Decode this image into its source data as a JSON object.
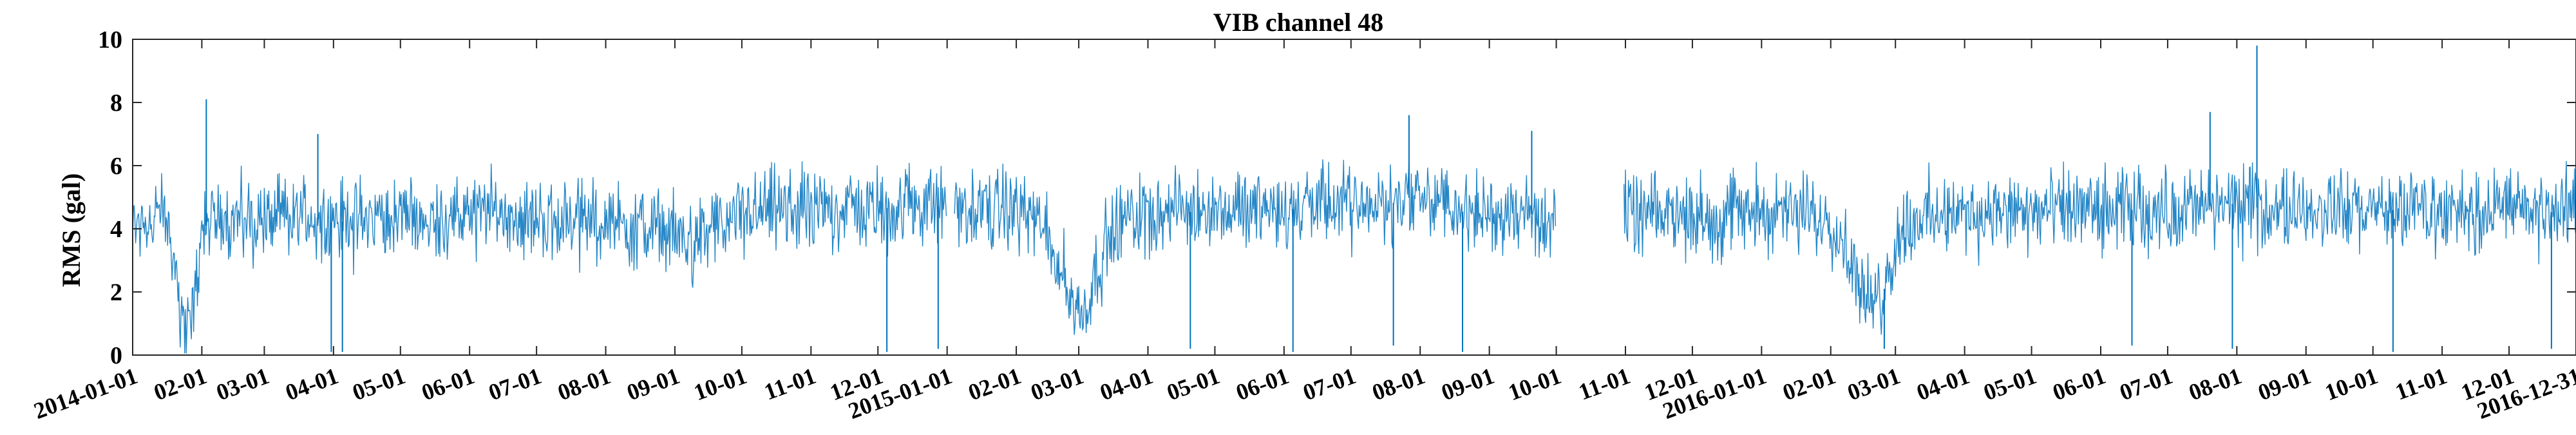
{
  "chart_data": {
    "type": "line",
    "title": "VIB channel 48",
    "xlabel": "",
    "ylabel": "RMS (gal)",
    "xlim": [
      "2014-01-01",
      "2016-12-31"
    ],
    "ylim": [
      0,
      10
    ],
    "yticks": [
      0,
      2,
      4,
      6,
      8,
      10
    ],
    "grid": false,
    "line_color": "#0072bd",
    "xtick_labels": [
      {
        "date": "2014-01-01",
        "label": "2014-01-01"
      },
      {
        "date": "2014-02-01",
        "label": "02-01"
      },
      {
        "date": "2014-03-01",
        "label": "03-01"
      },
      {
        "date": "2014-04-01",
        "label": "04-01"
      },
      {
        "date": "2014-05-01",
        "label": "05-01"
      },
      {
        "date": "2014-06-01",
        "label": "06-01"
      },
      {
        "date": "2014-07-01",
        "label": "07-01"
      },
      {
        "date": "2014-08-01",
        "label": "08-01"
      },
      {
        "date": "2014-09-01",
        "label": "09-01"
      },
      {
        "date": "2014-10-01",
        "label": "10-01"
      },
      {
        "date": "2014-11-01",
        "label": "11-01"
      },
      {
        "date": "2014-12-01",
        "label": "12-01"
      },
      {
        "date": "2015-01-01",
        "label": "2015-01-01"
      },
      {
        "date": "2015-02-01",
        "label": "02-01"
      },
      {
        "date": "2015-03-01",
        "label": "03-01"
      },
      {
        "date": "2015-04-01",
        "label": "04-01"
      },
      {
        "date": "2015-05-01",
        "label": "05-01"
      },
      {
        "date": "2015-06-01",
        "label": "06-01"
      },
      {
        "date": "2015-07-01",
        "label": "07-01"
      },
      {
        "date": "2015-08-01",
        "label": "08-01"
      },
      {
        "date": "2015-09-01",
        "label": "09-01"
      },
      {
        "date": "2015-10-01",
        "label": "10-01"
      },
      {
        "date": "2015-11-01",
        "label": "11-01"
      },
      {
        "date": "2015-12-01",
        "label": "12-01"
      },
      {
        "date": "2016-01-01",
        "label": "2016-01-01"
      },
      {
        "date": "2016-02-01",
        "label": "02-01"
      },
      {
        "date": "2016-03-01",
        "label": "03-01"
      },
      {
        "date": "2016-04-01",
        "label": "04-01"
      },
      {
        "date": "2016-05-01",
        "label": "05-01"
      },
      {
        "date": "2016-06-01",
        "label": "06-01"
      },
      {
        "date": "2016-07-01",
        "label": "07-01"
      },
      {
        "date": "2016-08-01",
        "label": "08-01"
      },
      {
        "date": "2016-09-01",
        "label": "09-01"
      },
      {
        "date": "2016-10-01",
        "label": "10-01"
      },
      {
        "date": "2016-11-01",
        "label": "11-01"
      },
      {
        "date": "2016-12-01",
        "label": "12-01"
      },
      {
        "date": "2016-12-31",
        "label": "2016-12-31"
      }
    ],
    "series": [
      {
        "x": [
          "2014-01-01",
          "2014-01-05",
          "2014-01-10",
          "2014-01-13",
          "2014-01-15",
          "2014-01-18",
          "2014-01-20",
          "2014-01-23",
          "2014-01-26",
          "2014-01-29",
          "2014-02-01",
          "2014-02-04",
          "2014-02-07",
          "2014-02-10",
          "2014-02-15",
          "2014-02-20",
          "2014-02-25",
          "2014-03-05",
          "2014-03-15",
          "2014-03-25",
          "2014-04-01",
          "2014-04-15",
          "2014-05-01",
          "2014-05-15",
          "2014-06-01",
          "2014-06-15",
          "2014-07-01",
          "2014-07-15",
          "2014-08-01",
          "2014-08-15",
          "2014-09-01",
          "2014-09-15",
          "2014-09-25",
          "2014-10-05",
          "2014-10-20",
          "2014-11-01",
          "2014-11-15",
          "2014-12-01",
          "2014-12-15",
          "2014-12-31",
          "2015-01-10",
          "2015-01-25",
          "2015-02-05",
          "2015-02-12",
          "2015-02-18",
          "2015-02-22",
          "2015-02-26",
          "2015-03-02",
          "2015-03-06",
          "2015-03-12",
          "2015-03-20",
          "2015-04-01",
          "2015-04-15",
          "2015-05-01",
          "2015-05-15",
          "2015-06-01",
          "2015-06-15",
          "2015-07-01",
          "2015-07-15",
          "2015-08-01",
          "2015-08-15",
          "2015-09-01",
          "2015-09-15",
          "2015-09-28",
          "2015-11-05",
          "2015-11-20",
          "2015-12-01",
          "2015-12-15",
          "2016-01-01",
          "2016-01-15",
          "2016-01-25",
          "2016-02-01",
          "2016-02-05",
          "2016-02-10",
          "2016-02-15",
          "2016-02-20",
          "2016-02-25",
          "2016-03-01",
          "2016-03-05",
          "2016-03-15",
          "2016-04-01",
          "2016-04-15",
          "2016-05-01",
          "2016-05-15",
          "2016-06-01",
          "2016-06-15",
          "2016-07-01",
          "2016-07-15",
          "2016-08-01",
          "2016-08-15",
          "2016-09-01",
          "2016-09-15",
          "2016-10-01",
          "2016-10-15",
          "2016-11-01",
          "2016-11-15",
          "2016-12-01",
          "2016-12-15",
          "2016-12-31"
        ],
        "y": [
          3.9,
          4.4,
          4.2,
          4.5,
          4.3,
          3.9,
          2.6,
          1.5,
          0.8,
          1.8,
          3.9,
          4.2,
          4.3,
          4.3,
          4.4,
          4.2,
          4.3,
          4.3,
          4.4,
          4.3,
          4.2,
          4.3,
          4.4,
          4.3,
          4.4,
          4.5,
          4.3,
          4.3,
          4.2,
          4.1,
          3.7,
          3.8,
          4.2,
          4.5,
          4.6,
          4.5,
          4.7,
          4.6,
          4.8,
          4.7,
          4.6,
          4.7,
          4.6,
          4.0,
          3.3,
          2.5,
          1.7,
          1.3,
          2.0,
          3.4,
          4.2,
          4.6,
          4.5,
          4.6,
          4.7,
          4.6,
          4.7,
          4.8,
          4.7,
          5.1,
          4.6,
          4.4,
          4.5,
          4.4,
          4.3,
          4.5,
          4.4,
          4.5,
          4.6,
          4.4,
          4.5,
          4.2,
          3.7,
          3.0,
          2.0,
          1.3,
          2.1,
          3.5,
          4.1,
          4.4,
          4.4,
          4.5,
          4.4,
          4.6,
          4.5,
          4.6,
          4.5,
          4.7,
          4.8,
          4.6,
          4.7,
          4.5,
          4.6,
          4.6,
          4.5,
          4.6,
          4.7,
          4.5,
          4.6
        ],
        "envelope": 1.15,
        "gaps": [
          [
            "2015-01-01",
            "2015-01-04"
          ],
          [
            "2015-10-01",
            "2015-10-31"
          ]
        ],
        "spikes": [
          {
            "date": "2014-02-03",
            "value": 8.1
          },
          {
            "date": "2014-03-25",
            "value": 7.0
          },
          {
            "date": "2014-03-31",
            "value": 0.1
          },
          {
            "date": "2014-04-05",
            "value": 0.1
          },
          {
            "date": "2014-12-05",
            "value": 0.1
          },
          {
            "date": "2014-12-28",
            "value": 0.2
          },
          {
            "date": "2015-04-20",
            "value": 0.2
          },
          {
            "date": "2015-06-05",
            "value": 0.1
          },
          {
            "date": "2015-07-20",
            "value": 0.3
          },
          {
            "date": "2015-07-27",
            "value": 7.6
          },
          {
            "date": "2015-08-20",
            "value": 0.1
          },
          {
            "date": "2015-09-20",
            "value": 7.1
          },
          {
            "date": "2016-02-25",
            "value": 0.2
          },
          {
            "date": "2016-06-15",
            "value": 0.3
          },
          {
            "date": "2016-07-20",
            "value": 7.7
          },
          {
            "date": "2016-07-30",
            "value": 0.2
          },
          {
            "date": "2016-08-10",
            "value": 9.8
          },
          {
            "date": "2016-10-10",
            "value": 0.1
          },
          {
            "date": "2016-12-20",
            "value": 0.2
          }
        ]
      }
    ]
  }
}
